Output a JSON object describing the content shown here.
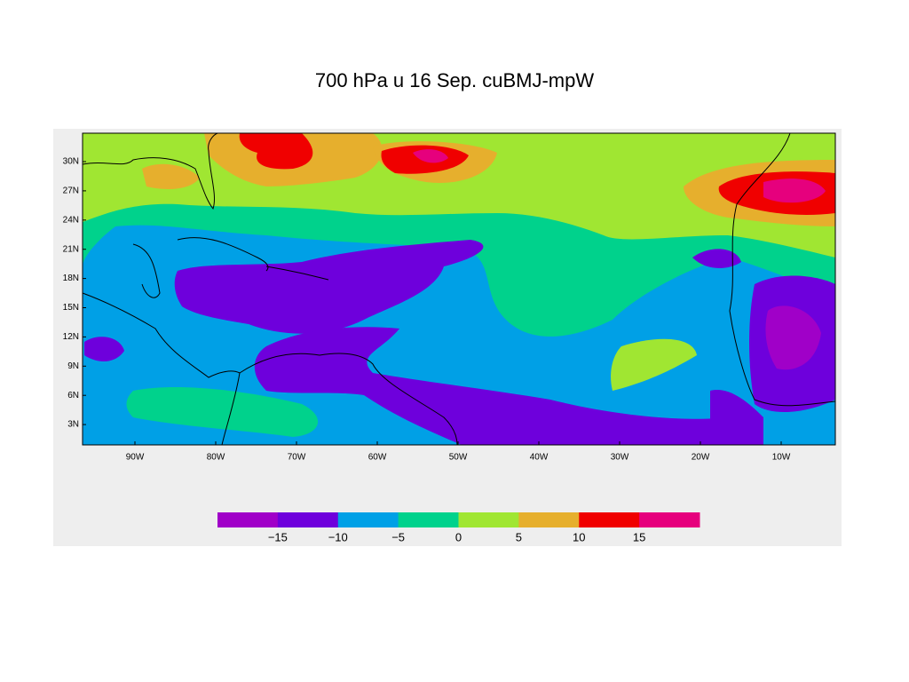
{
  "title": "700 hPa u 16 Sep. cuBMJ-mpW",
  "map": {
    "lat_labels": [
      "30N",
      "27N",
      "24N",
      "21N",
      "18N",
      "15N",
      "12N",
      "9N",
      "6N",
      "3N"
    ],
    "lon_labels": [
      "90W",
      "80W",
      "70W",
      "60W",
      "50W",
      "40W",
      "30W",
      "20W",
      "10W"
    ]
  },
  "colorbar": {
    "colors": [
      "#a000c8",
      "#6e00dc",
      "#00a0e6",
      "#00d28c",
      "#a0e632",
      "#e6af2d",
      "#f00000",
      "#e6007d"
    ],
    "labels": [
      "−15",
      "−10",
      "−5",
      "0",
      "5",
      "10",
      "15"
    ]
  }
}
